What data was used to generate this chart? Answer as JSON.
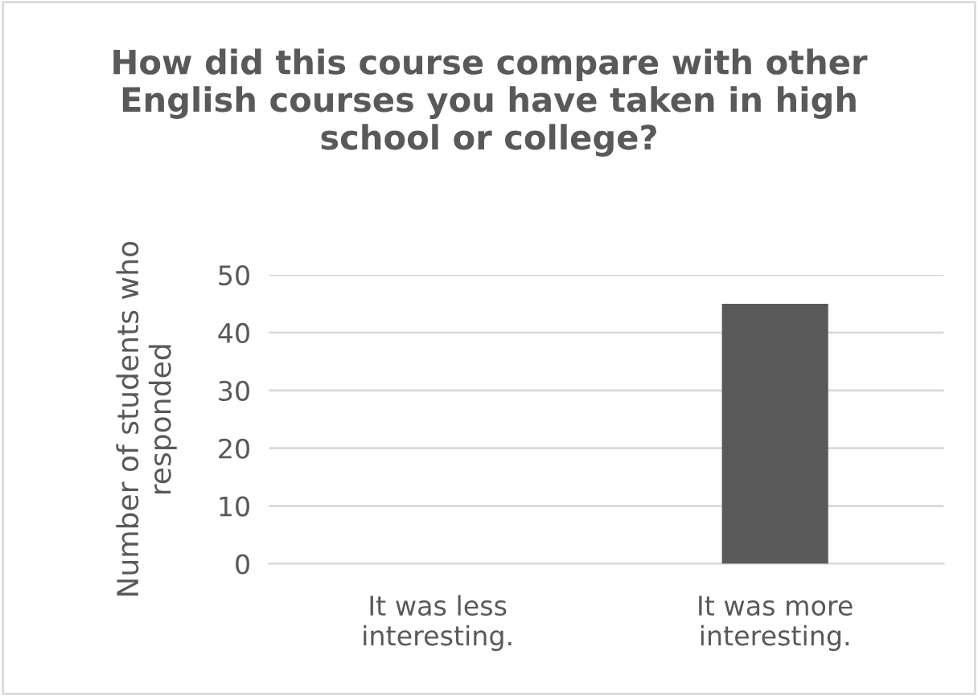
{
  "chart_data": {
    "type": "bar",
    "title": "How did this course compare with other English courses you have taken in high school or college?",
    "ylabel": "Number of students who\nresponded",
    "categories": [
      "It was less\ninteresting.",
      "It was more\ninteresting."
    ],
    "values": [
      0,
      45
    ],
    "color": "#595959",
    "ylim": [
      0,
      50
    ],
    "yticks": [
      0,
      10,
      20,
      30,
      40,
      50
    ],
    "grid": "y"
  }
}
